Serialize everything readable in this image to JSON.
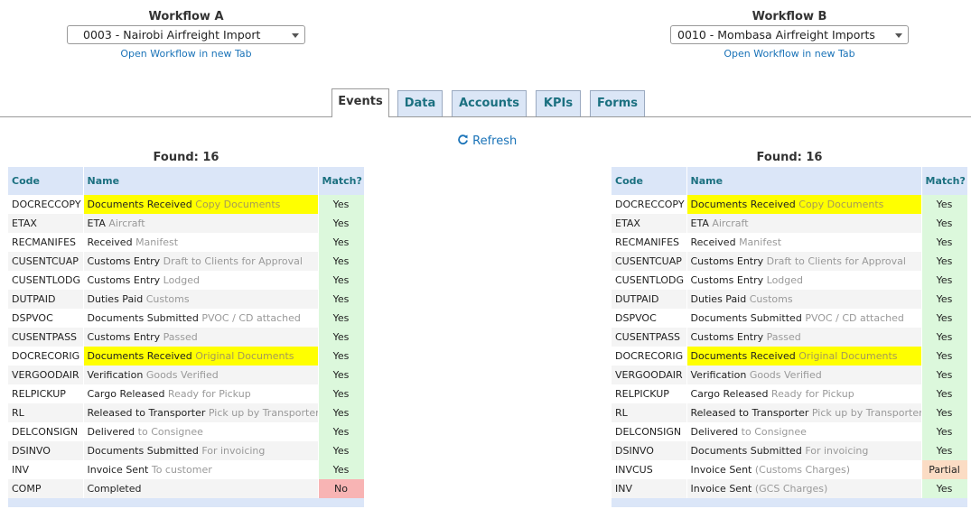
{
  "workflows": [
    {
      "title": "Workflow A",
      "selected": "0003 - Nairobi Airfreight Import",
      "link": "Open Workflow in new Tab"
    },
    {
      "title": "Workflow B",
      "selected": "0010 - Mombasa Airfreight Imports",
      "link": "Open Workflow in new Tab"
    }
  ],
  "tabs": [
    "Events",
    "Data",
    "Accounts",
    "KPIs",
    "Forms"
  ],
  "active_tab": 0,
  "refresh": "Refresh",
  "tables": [
    {
      "found": "Found: 16",
      "headers": [
        "Code",
        "Name",
        "Match?"
      ],
      "rows": [
        {
          "code": "DOCRECCOPY",
          "name": "Documents Received",
          "detail": "Copy Documents",
          "match": "Yes",
          "highlight": true
        },
        {
          "code": "ETAX",
          "name": "ETA",
          "detail": "Aircraft",
          "match": "Yes"
        },
        {
          "code": "RECMANIFES",
          "name": "Received",
          "detail": "Manifest",
          "match": "Yes"
        },
        {
          "code": "CUSENTCUAP",
          "name": "Customs Entry",
          "detail": "Draft to Clients for Approval",
          "match": "Yes"
        },
        {
          "code": "CUSENTLODG",
          "name": "Customs Entry",
          "detail": "Lodged",
          "match": "Yes"
        },
        {
          "code": "DUTPAID",
          "name": "Duties Paid",
          "detail": "Customs",
          "match": "Yes"
        },
        {
          "code": "DSPVOC",
          "name": "Documents Submitted",
          "detail": "PVOC / CD attached",
          "match": "Yes"
        },
        {
          "code": "CUSENTPASS",
          "name": "Customs Entry",
          "detail": "Passed",
          "match": "Yes"
        },
        {
          "code": "DOCRECORIG",
          "name": "Documents Received",
          "detail": "Original Documents",
          "match": "Yes",
          "highlight": true
        },
        {
          "code": "VERGOODAIR",
          "name": "Verification",
          "detail": "Goods Verified",
          "match": "Yes"
        },
        {
          "code": "RELPICKUP",
          "name": "Cargo Released",
          "detail": "Ready for Pickup",
          "match": "Yes"
        },
        {
          "code": "RL",
          "name": "Released to Transporter",
          "detail": "Pick up by Transporter",
          "match": "Yes"
        },
        {
          "code": "DELCONSIGN",
          "name": "Delivered",
          "detail": "to Consignee",
          "match": "Yes"
        },
        {
          "code": "DSINVO",
          "name": "Documents Submitted",
          "detail": "For invoicing",
          "match": "Yes"
        },
        {
          "code": "INV",
          "name": "Invoice Sent",
          "detail": "To customer",
          "match": "Yes"
        },
        {
          "code": "COMP",
          "name": "Completed",
          "match": "No"
        }
      ]
    },
    {
      "found": "Found: 16",
      "headers": [
        "Code",
        "Name",
        "Match?"
      ],
      "rows": [
        {
          "code": "DOCRECCOPY",
          "name": "Documents Received",
          "detail": "Copy Documents",
          "match": "Yes",
          "highlight": true
        },
        {
          "code": "ETAX",
          "name": "ETA",
          "detail": "Aircraft",
          "match": "Yes"
        },
        {
          "code": "RECMANIFES",
          "name": "Received",
          "detail": "Manifest",
          "match": "Yes"
        },
        {
          "code": "CUSENTCUAP",
          "name": "Customs Entry",
          "detail": "Draft to Clients for Approval",
          "match": "Yes"
        },
        {
          "code": "CUSENTLODG",
          "name": "Customs Entry",
          "detail": "Lodged",
          "match": "Yes"
        },
        {
          "code": "DUTPAID",
          "name": "Duties Paid",
          "detail": "Customs",
          "match": "Yes"
        },
        {
          "code": "DSPVOC",
          "name": "Documents Submitted",
          "detail": "PVOC / CD attached",
          "match": "Yes"
        },
        {
          "code": "CUSENTPASS",
          "name": "Customs Entry",
          "detail": "Passed",
          "match": "Yes"
        },
        {
          "code": "DOCRECORIG",
          "name": "Documents Received",
          "detail": "Original Documents",
          "match": "Yes",
          "highlight": true
        },
        {
          "code": "VERGOODAIR",
          "name": "Verification",
          "detail": "Goods Verified",
          "match": "Yes"
        },
        {
          "code": "RELPICKUP",
          "name": "Cargo Released",
          "detail": "Ready for Pickup",
          "match": "Yes"
        },
        {
          "code": "RL",
          "name": "Released to Transporter",
          "detail": "Pick up by Transporter",
          "match": "Yes"
        },
        {
          "code": "DELCONSIGN",
          "name": "Delivered",
          "detail": "to Consignee",
          "match": "Yes"
        },
        {
          "code": "DSINVO",
          "name": "Documents Submitted",
          "detail": "For invoicing",
          "match": "Yes"
        },
        {
          "code": "INVCUS",
          "name": "Invoice Sent",
          "detail": "(Customs Charges)",
          "match": "Partial"
        },
        {
          "code": "INV",
          "name": "Invoice Sent",
          "detail": "(GCS Charges)",
          "match": "Yes"
        }
      ]
    }
  ]
}
